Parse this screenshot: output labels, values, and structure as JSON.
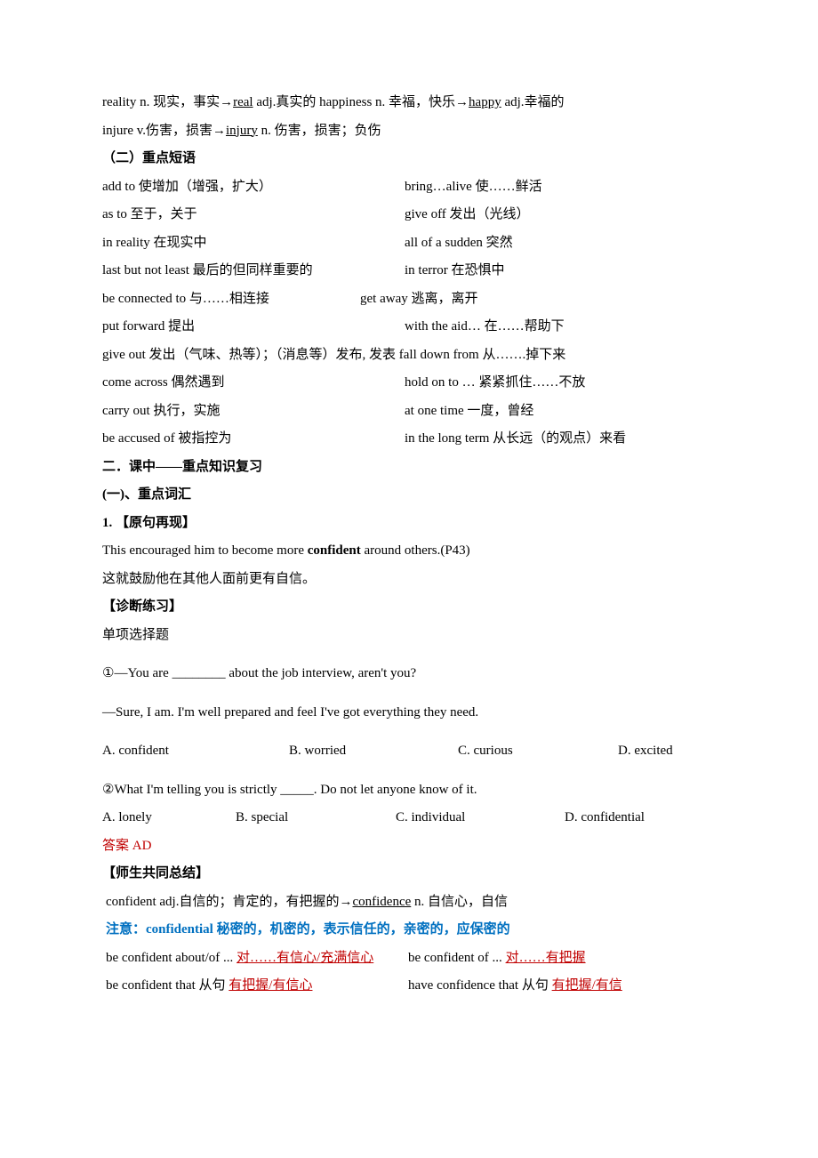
{
  "line1": {
    "a": "reality n.  现实，事实→",
    "b": "real",
    "c": " adj.真实的 happiness n.  幸福，快乐→",
    "d": "happy",
    "e": " adj.幸福的"
  },
  "line2": {
    "a": "injure v.伤害，损害→",
    "b": "injury",
    "c": " n.  伤害，损害；负伤"
  },
  "sec1": "（二）重点短语",
  "phrases": [
    {
      "l": "add to     使增加（增强，扩大）",
      "r": "bring…alive     使……鲜活"
    },
    {
      "l": "as to         至于，关于",
      "r": "give off      发出（光线）"
    },
    {
      "l": "in reality  在现实中",
      "r": "all of a sudden        突然"
    },
    {
      "l": "last but not least   最后的但同样重要的",
      "r": "in terror   在恐惧中"
    },
    {
      "l": "be connected to     与……相连接",
      "r": "get away  逃离，离开"
    },
    {
      "l": "put forward       提出",
      "r": "with the aid…  在……帮助下"
    },
    {
      "l": "give out  发出（气味、热等）；（消息等）发布,  发表   fall down from 从…….掉下来",
      "r": ""
    },
    {
      "l": "come across   偶然遇到",
      "r": "hold on to …      紧紧抓住……不放"
    },
    {
      "l": "carry out  执行，实施",
      "r": "at one time 一度，曾经"
    },
    {
      "l": "be accused of      被指控为",
      "r": "in the long term  从长远（的观点）来看"
    }
  ],
  "sec2": "二．课中——重点知识复习",
  "sec3": "(一)、重点词汇",
  "sec4": "1. 【原句再现】",
  "eng1a": "This encouraged him to become more ",
  "eng1b": "confident",
  "eng1c": " around others.(P43)",
  "cn1": "这就鼓励他在其他人面前更有自信。",
  "diag": "【诊断练习】",
  "single": "单项选择题",
  "q1": "①—You are ________ about the job interview, aren't you?",
  "q1b": "—Sure, I am. I'm well prepared and feel I've got everything they need.",
  "q1opts": {
    "a": "A. confident",
    "b": "B. worried",
    "c": "C. curious",
    "d": "D. excited"
  },
  "q2": "②What I'm telling you is strictly _____. Do not let anyone know of it.",
  "q2opts": {
    "a": "A. lonely",
    "b": "B. special",
    "c": "C. individual",
    "d": "D. confidential"
  },
  "ans": "答案 AD",
  "sum_title": "【师生共同总结】",
  "sum1a": "confident adj.自信的；肯定的，有把握的→",
  "sum1b": "confidence",
  "sum1c": " n.  自信心，自信",
  "note": "注意：confidential 秘密的，机密的，表示信任的，亲密的，应保密的",
  "sum_pairs": [
    {
      "la": "be confident about/of ...  ",
      "lb": "对……有信心/充满信心",
      "ra": "be confident of ...   ",
      "rb": "对……有把握"
    },
    {
      "la": "be confident that  从句   ",
      "lb": "有把握/有信心",
      "ra": "have confidence that 从句 ",
      "rb": "有把握/有信"
    }
  ]
}
